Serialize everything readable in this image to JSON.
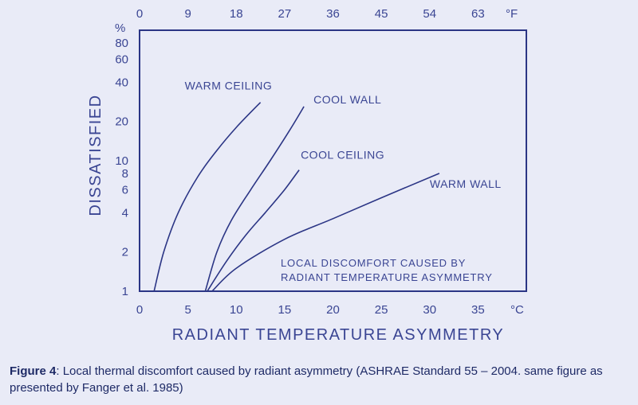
{
  "chart_data": {
    "type": "line",
    "xlabel": "RADIANT TEMPERATURE ASYMMETRY",
    "ylabel": "DISSATISFIED",
    "x_unit": "°C",
    "y_unit": "%",
    "top_axis_unit": "°F",
    "xlim": [
      0,
      40
    ],
    "ylim": [
      1,
      100
    ],
    "y_scale": "log",
    "x_ticks": [
      0,
      5,
      10,
      15,
      20,
      25,
      30,
      35
    ],
    "top_ticks": [
      0,
      9,
      18,
      27,
      36,
      45,
      54,
      63
    ],
    "y_ticks": [
      1,
      2,
      4,
      6,
      8,
      10,
      20,
      40,
      60,
      80
    ],
    "grid": false,
    "annotation": [
      "LOCAL DISCOMFORT CAUSED BY",
      "RADIANT TEMPERATURE ASYMMETRY"
    ],
    "series": [
      {
        "name": "WARM CEILING",
        "x": [
          1.5,
          2.5,
          4,
          6,
          8,
          10,
          12.5
        ],
        "y": [
          1,
          2,
          4,
          7.5,
          12,
          18,
          28
        ]
      },
      {
        "name": "COOL WALL",
        "x": [
          6.8,
          8,
          9.5,
          11.5,
          13.5,
          15.5,
          17
        ],
        "y": [
          1,
          2,
          3.5,
          6,
          10,
          17,
          26
        ]
      },
      {
        "name": "COOL CEILING",
        "x": [
          7,
          9,
          11,
          13,
          15,
          16.5
        ],
        "y": [
          1,
          1.7,
          2.7,
          4,
          6,
          8.5
        ]
      },
      {
        "name": "WARM WALL",
        "x": [
          7.5,
          10,
          15,
          20,
          25,
          31
        ],
        "y": [
          1,
          1.5,
          2.5,
          3.6,
          5.2,
          8
        ]
      }
    ]
  },
  "caption": {
    "label": "Figure 4",
    "text": ": Local thermal discomfort caused by radiant asymmetry (ASHRAE Standard 55 – 2004. same figure as presented by Fanger et al. 1985)"
  }
}
